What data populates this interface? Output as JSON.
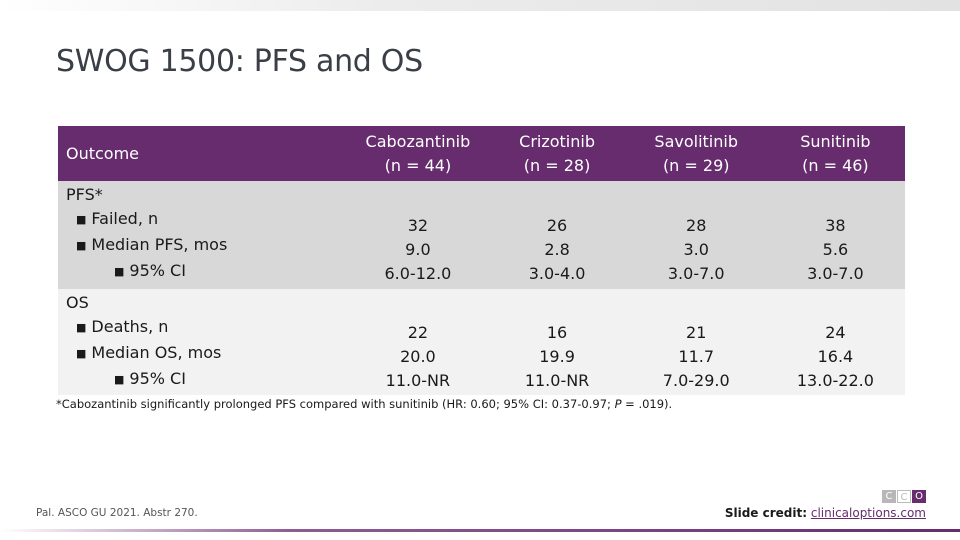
{
  "title": "SWOG 1500: PFS and OS",
  "table": {
    "outcome_header": "Outcome",
    "columns": [
      {
        "name": "Cabozantinib",
        "n": "(n = 44)"
      },
      {
        "name": "Crizotinib",
        "n": "(n = 28)"
      },
      {
        "name": "Savolitinib",
        "n": "(n = 29)"
      },
      {
        "name": "Sunitinib",
        "n": "(n = 46)"
      }
    ],
    "rows": [
      {
        "label": "PFS*",
        "sub1": "Failed, n",
        "sub2": "Median PFS, mos",
        "sub3": "95% CI",
        "values": [
          [
            "32",
            "9.0",
            "6.0-12.0"
          ],
          [
            "26",
            "2.8",
            "3.0-4.0"
          ],
          [
            "28",
            "3.0",
            "3.0-7.0"
          ],
          [
            "38",
            "5.6",
            "3.0-7.0"
          ]
        ]
      },
      {
        "label": "OS",
        "sub1": "Deaths, n",
        "sub2": "Median OS, mos",
        "sub3": "95% CI",
        "values": [
          [
            "22",
            "20.0",
            "11.0-NR"
          ],
          [
            "16",
            "19.9",
            "11.0-NR"
          ],
          [
            "21",
            "11.7",
            "7.0-29.0"
          ],
          [
            "24",
            "16.4",
            "13.0-22.0"
          ]
        ]
      }
    ]
  },
  "footnote": {
    "before_p": "*Cabozantinib significantly prolonged PFS compared with sunitinib (HR: 0.60; 95% CI: 0.37-0.97; ",
    "p_letter": "P",
    "after_p": " = .019)."
  },
  "citation": "Pal. ASCO GU 2021. Abstr 270.",
  "credit": {
    "label": "Slide credit:",
    "link": "clinicaloptions.com"
  },
  "logo": {
    "letters": [
      "C",
      "C",
      "O"
    ]
  },
  "colors": {
    "header_bg": "#662c6e",
    "row_pfs_bg": "#d8d8d8",
    "row_os_bg": "#f2f2f2"
  }
}
